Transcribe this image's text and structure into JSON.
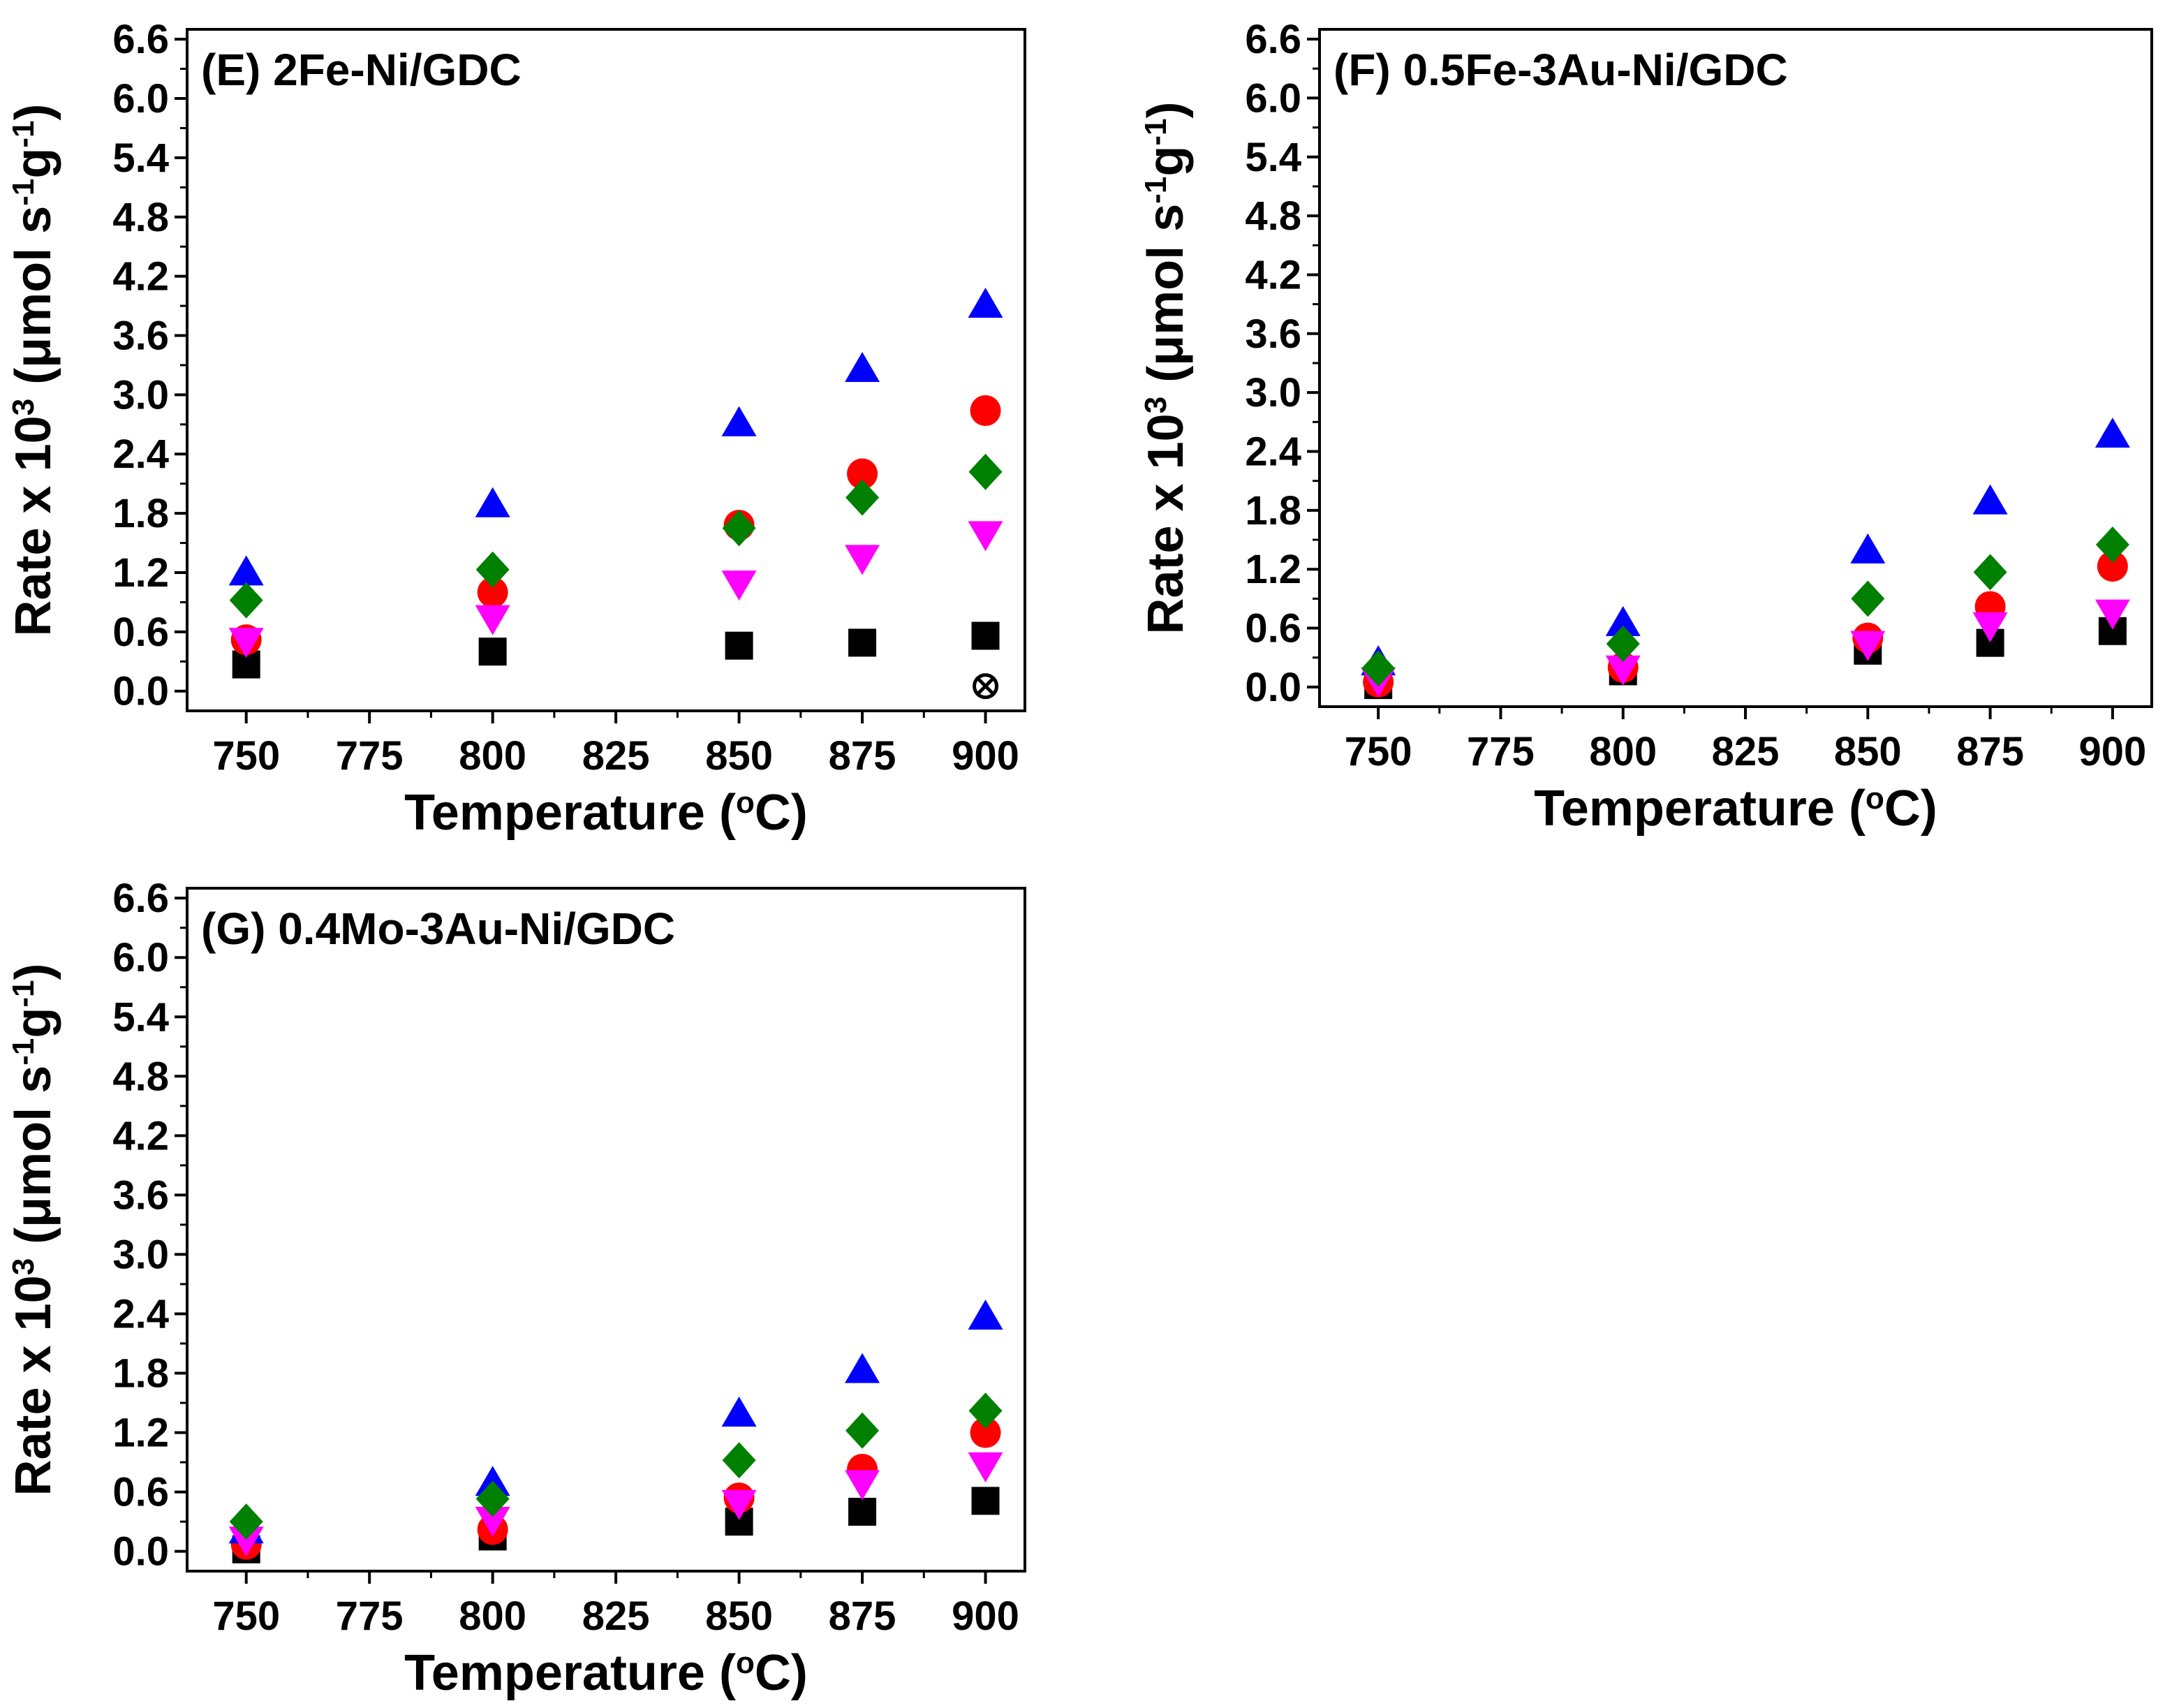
{
  "chart_data": [
    {
      "type": "scatter",
      "title": "(E) 2Fe-Ni/GDC",
      "xlabel": {
        "main": "Temperature (",
        "sup": "o",
        "tail": "C)"
      },
      "ylabel": {
        "main": "Rate x 10",
        "sup1": "3",
        "mid": " (μmol s",
        "sup2": "-1",
        "mid2": "g",
        "sup3": "-1",
        "tail": ")"
      },
      "xlim": [
        738,
        908
      ],
      "ylim": [
        -0.2,
        6.7
      ],
      "xticks": [
        750,
        775,
        800,
        825,
        850,
        875,
        900
      ],
      "yticks": [
        "0.0",
        "0.6",
        "1.2",
        "1.8",
        "2.4",
        "3.0",
        "3.6",
        "4.2",
        "4.8",
        "5.4",
        "6.0",
        "6.6"
      ],
      "x": [
        750,
        800,
        850,
        875,
        900
      ],
      "series": [
        {
          "name": "black squares",
          "marker": "square",
          "color": "#000000",
          "values": [
            0.27,
            0.4,
            0.46,
            0.49,
            0.56
          ]
        },
        {
          "name": "red circles",
          "marker": "circle",
          "color": "#ff0000",
          "values": [
            0.52,
            1.0,
            1.68,
            2.2,
            2.84
          ]
        },
        {
          "name": "blue triangles",
          "marker": "triangle-up",
          "color": "#0000ff",
          "values": [
            1.19,
            1.88,
            2.7,
            3.25,
            3.9
          ]
        },
        {
          "name": "magenta triangles",
          "marker": "triangle-down",
          "color": "#ff00ff",
          "values": [
            0.52,
            0.75,
            1.1,
            1.36,
            1.6
          ]
        },
        {
          "name": "green diamonds",
          "marker": "diamond",
          "color": "#008000",
          "values": [
            0.92,
            1.23,
            1.65,
            1.96,
            2.22
          ]
        }
      ],
      "extra_points": [
        {
          "name": "crossed circle",
          "marker": "cross-circle",
          "color": "#000000",
          "x": 900,
          "y": 0.05
        }
      ]
    },
    {
      "type": "scatter",
      "title": "(F) 0.5Fe-3Au-Ni/GDC",
      "xlabel": {
        "main": "Temperature (",
        "sup": "o",
        "tail": "C)"
      },
      "ylabel": {
        "main": "Rate x 10",
        "sup1": "3",
        "mid": " (μmol s",
        "sup2": "-1",
        "mid2": "g",
        "sup3": "-1",
        "tail": ")"
      },
      "xlim": [
        738,
        908
      ],
      "ylim": [
        -0.2,
        6.7
      ],
      "xticks": [
        750,
        775,
        800,
        825,
        850,
        875,
        900
      ],
      "yticks": [
        "0.0",
        "0.6",
        "1.2",
        "1.8",
        "2.4",
        "3.0",
        "3.6",
        "4.2",
        "4.8",
        "5.4",
        "6.0",
        "6.6"
      ],
      "x": [
        750,
        800,
        850,
        875,
        900
      ],
      "series": [
        {
          "name": "black squares",
          "marker": "square",
          "color": "#000000",
          "values": [
            0.02,
            0.16,
            0.37,
            0.45,
            0.57
          ]
        },
        {
          "name": "red circles",
          "marker": "circle",
          "color": "#ff0000",
          "values": [
            0.05,
            0.2,
            0.5,
            0.82,
            1.23
          ]
        },
        {
          "name": "blue triangles",
          "marker": "triangle-up",
          "color": "#0000ff",
          "values": [
            0.24,
            0.64,
            1.38,
            1.88,
            2.56
          ]
        },
        {
          "name": "magenta triangles",
          "marker": "triangle-down",
          "color": "#ff00ff",
          "values": [
            0.08,
            0.2,
            0.45,
            0.64,
            0.77
          ]
        },
        {
          "name": "green diamonds",
          "marker": "diamond",
          "color": "#008000",
          "values": [
            0.19,
            0.44,
            0.9,
            1.17,
            1.45
          ]
        }
      ],
      "extra_points": []
    },
    {
      "type": "scatter",
      "title": "(G) 0.4Mo-3Au-Ni/GDC",
      "xlabel": {
        "main": "Temperature (",
        "sup": "o",
        "tail": "C)"
      },
      "ylabel": {
        "main": "Rate x 10",
        "sup1": "3",
        "mid": " (μmol s",
        "sup2": "-1",
        "mid2": "g",
        "sup3": "-1",
        "tail": ")"
      },
      "xlim": [
        738,
        908
      ],
      "ylim": [
        -0.2,
        6.7
      ],
      "xticks": [
        750,
        775,
        800,
        825,
        850,
        875,
        900
      ],
      "yticks": [
        "0.0",
        "0.6",
        "1.2",
        "1.8",
        "2.4",
        "3.0",
        "3.6",
        "4.2",
        "4.8",
        "5.4",
        "6.0",
        "6.6"
      ],
      "x": [
        750,
        800,
        850,
        875,
        900
      ],
      "series": [
        {
          "name": "black squares",
          "marker": "square",
          "color": "#000000",
          "values": [
            0.02,
            0.15,
            0.3,
            0.4,
            0.51
          ]
        },
        {
          "name": "red circles",
          "marker": "circle",
          "color": "#ff0000",
          "values": [
            0.07,
            0.22,
            0.54,
            0.83,
            1.2
          ]
        },
        {
          "name": "blue triangles",
          "marker": "triangle-up",
          "color": "#0000ff",
          "values": [
            0.2,
            0.68,
            1.38,
            1.82,
            2.36
          ]
        },
        {
          "name": "magenta triangles",
          "marker": "triangle-down",
          "color": "#ff00ff",
          "values": [
            0.13,
            0.33,
            0.5,
            0.7,
            0.88
          ]
        },
        {
          "name": "green diamonds",
          "marker": "diamond",
          "color": "#008000",
          "values": [
            0.3,
            0.53,
            0.92,
            1.22,
            1.42
          ]
        }
      ],
      "extra_points": []
    }
  ]
}
